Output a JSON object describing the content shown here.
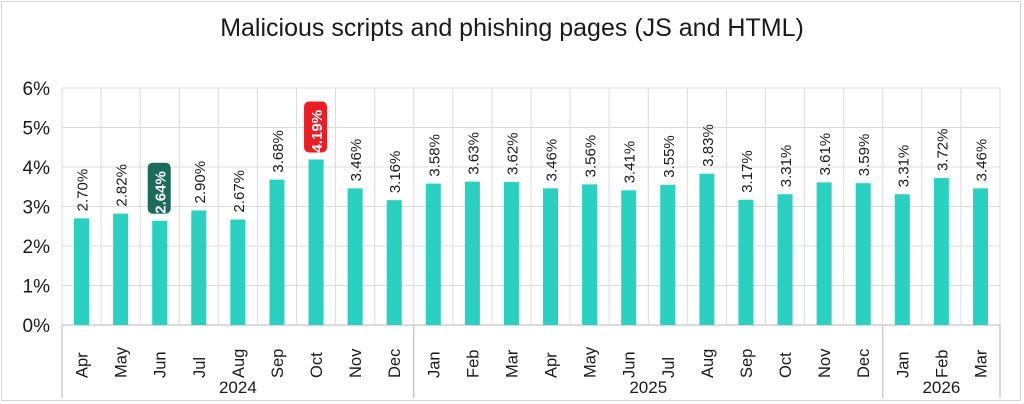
{
  "chart_data": {
    "type": "bar",
    "title": "Malicious scripts and phishing pages (JS and HTML)",
    "categories": [
      "Apr",
      "May",
      "Jun",
      "Jul",
      "Aug",
      "Sep",
      "Oct",
      "Nov",
      "Dec",
      "Jan",
      "Feb",
      "Mar",
      "Apr",
      "May",
      "Jun",
      "Jul",
      "Aug",
      "Sep",
      "Oct",
      "Nov",
      "Dec",
      "Jan",
      "Feb",
      "Mar"
    ],
    "values": [
      2.7,
      2.82,
      2.64,
      2.9,
      2.67,
      3.68,
      4.19,
      3.46,
      3.16,
      3.58,
      3.63,
      3.62,
      3.46,
      3.56,
      3.41,
      3.55,
      3.83,
      3.17,
      3.31,
      3.61,
      3.59,
      3.31,
      3.72,
      3.46
    ],
    "value_labels": [
      "2.70%",
      "2.82%",
      "2.64%",
      "2.90%",
      "2.67%",
      "3.68%",
      "4.19%",
      "3.46%",
      "3.16%",
      "3.58%",
      "3.63%",
      "3.62%",
      "3.46%",
      "3.56%",
      "3.41%",
      "3.55%",
      "3.83%",
      "3.17%",
      "3.31%",
      "3.61%",
      "3.59%",
      "3.31%",
      "3.72%",
      "3.46%"
    ],
    "year_groups": [
      {
        "label": "2024",
        "count": 9
      },
      {
        "label": "2025",
        "count": 12
      },
      {
        "label": "2026",
        "count": 3
      }
    ],
    "yticks": [
      "0%",
      "1%",
      "2%",
      "3%",
      "4%",
      "5%",
      "6%"
    ],
    "ylim": [
      0,
      6
    ],
    "grid": true,
    "highlights": [
      {
        "index": 2,
        "color": "#1b6b5a"
      },
      {
        "index": 6,
        "color": "#ee1c25"
      }
    ],
    "colors": {
      "bar": "#2ad1c0",
      "grid": "#dcdcdc",
      "axis": "#b5b5b5"
    }
  }
}
